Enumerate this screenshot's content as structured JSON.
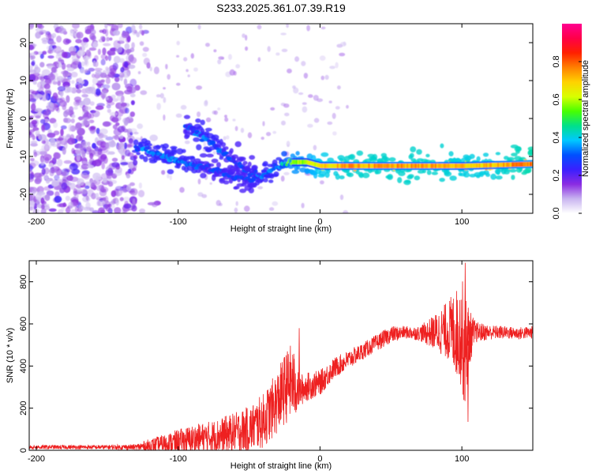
{
  "title": "S233.2025.361.07.39.R19",
  "chart_data": [
    {
      "type": "heatmap",
      "title": "S233.2025.361.07.39.R19",
      "xlabel": "Height of straight line (km)",
      "ylabel": "Frequency (Hz)",
      "xlim": [
        -205,
        150
      ],
      "ylim": [
        -25,
        25
      ],
      "xticks": [
        -200,
        -100,
        0,
        100
      ],
      "yticks": [
        -20,
        -10,
        0,
        10,
        20
      ],
      "colorbar": {
        "label": "Normalized spectral amplitude",
        "range": [
          0,
          1
        ],
        "ticks": [
          0.0,
          0.2,
          0.4,
          0.6,
          0.8
        ],
        "colors": [
          "#ffffff",
          "#c8b4f0",
          "#8a2be2",
          "#3a1fff",
          "#0050ff",
          "#00c8ff",
          "#00e08a",
          "#48ff00",
          "#d8ff00",
          "#ffd200",
          "#ff8000",
          "#ff2000",
          "#ff0048",
          "#ff0090"
        ]
      },
      "ridge": {
        "description": "dominant frequency track (Hz) vs height (km)",
        "x": [
          -130,
          -120,
          -110,
          -100,
          -90,
          -80,
          -70,
          -60,
          -50,
          -40,
          -30,
          -20,
          -10,
          0,
          10,
          20,
          40,
          60,
          80,
          100,
          120,
          150
        ],
        "y": [
          -7.5,
          -8.5,
          -10,
          -11,
          -12.5,
          -13,
          -14,
          -15.5,
          -16,
          -15,
          -13,
          -11.5,
          -11.5,
          -12.5,
          -12.5,
          -12.5,
          -12.5,
          -12.5,
          -12.5,
          -12.5,
          -12.3,
          -12
        ],
        "amplitude": [
          0.35,
          0.35,
          0.35,
          0.35,
          0.35,
          0.3,
          0.3,
          0.3,
          0.3,
          0.35,
          0.35,
          0.6,
          0.6,
          0.7,
          0.72,
          0.75,
          0.75,
          0.75,
          0.75,
          0.72,
          0.72,
          0.8
        ]
      },
      "secondary_ridge": {
        "description": "upper branch (Hz) vs height (km)",
        "x": [
          -95,
          -85,
          -75,
          -65,
          -55,
          -45
        ],
        "y": [
          -2,
          -4,
          -7,
          -10,
          -13,
          -15
        ],
        "amplitude": [
          0.3,
          0.35,
          0.35,
          0.3,
          0.3,
          0.3
        ]
      },
      "noise_region": {
        "x_range": [
          -205,
          -130
        ],
        "amplitude_range": [
          0.05,
          0.15
        ]
      }
    },
    {
      "type": "line",
      "xlabel": "Height of straight line (km)",
      "ylabel": "SNR (10 * v/v)",
      "xlim": [
        -205,
        150
      ],
      "ylim": [
        0,
        900
      ],
      "xticks": [
        -200,
        -100,
        0,
        100
      ],
      "yticks": [
        0,
        200,
        400,
        600,
        800
      ],
      "series": [
        {
          "name": "SNR",
          "color": "#ee2020",
          "envelope_x": [
            -205,
            -180,
            -160,
            -140,
            -130,
            -120,
            -110,
            -100,
            -90,
            -80,
            -70,
            -60,
            -50,
            -40,
            -30,
            -25,
            -20,
            -18,
            -15,
            -10,
            0,
            10,
            20,
            30,
            40,
            50,
            60,
            70,
            80,
            90,
            95,
            100,
            102,
            104,
            106,
            110,
            120,
            130,
            140,
            150
          ],
          "envelope_mean": [
            15,
            15,
            15,
            15,
            15,
            20,
            30,
            40,
            50,
            60,
            70,
            85,
            100,
            140,
            230,
            290,
            330,
            300,
            280,
            300,
            320,
            390,
            430,
            470,
            510,
            550,
            560,
            555,
            560,
            570,
            560,
            550,
            500,
            520,
            540,
            560,
            560,
            560,
            555,
            560
          ],
          "envelope_spread": [
            10,
            10,
            10,
            12,
            14,
            35,
            45,
            60,
            70,
            75,
            85,
            95,
            110,
            130,
            150,
            170,
            180,
            160,
            80,
            70,
            60,
            50,
            45,
            40,
            40,
            40,
            30,
            35,
            80,
            140,
            200,
            250,
            330,
            200,
            120,
            50,
            35,
            30,
            30,
            30
          ],
          "peaks": [
            {
              "x": -15,
              "y": 580
            },
            {
              "x": 102,
              "y": 890
            },
            {
              "x": 104,
              "y": 135
            }
          ]
        }
      ]
    }
  ]
}
